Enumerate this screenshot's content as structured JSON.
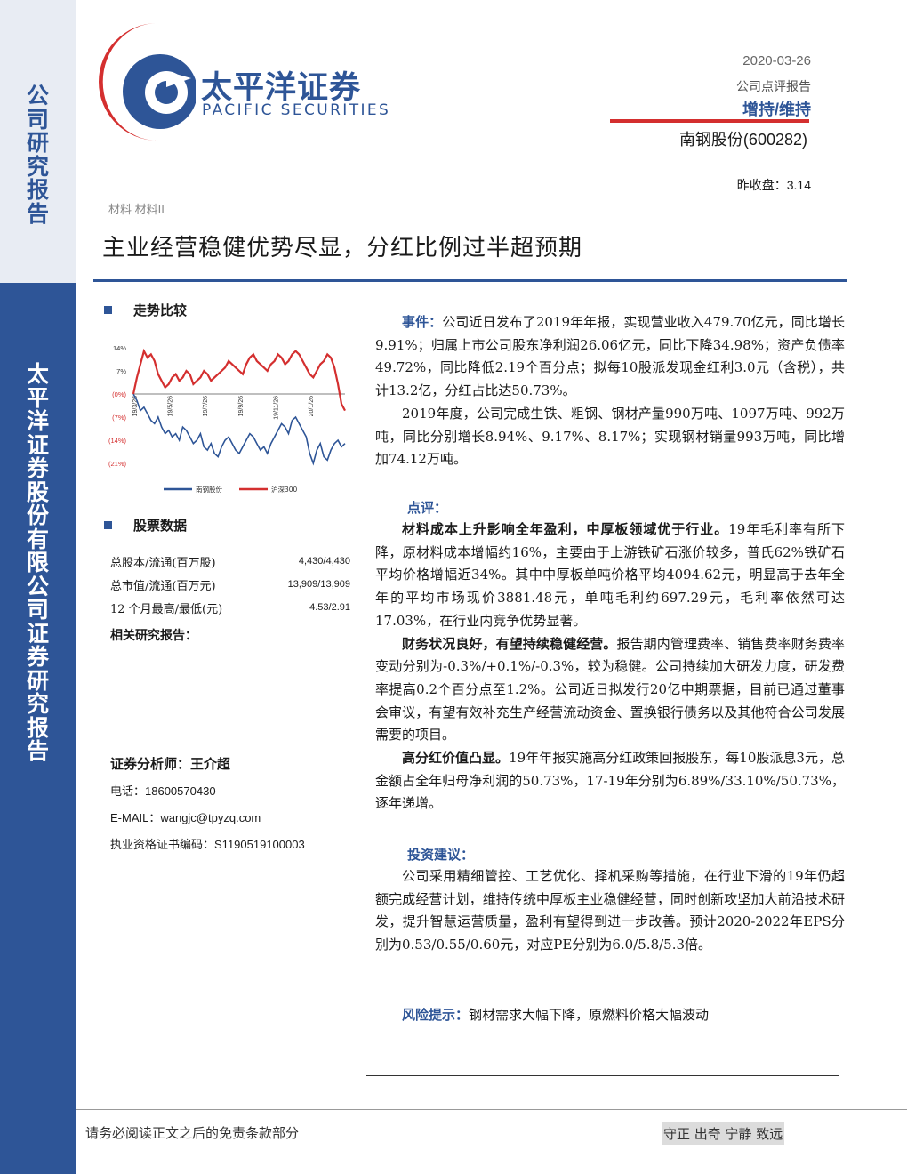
{
  "sidebar": {
    "top_text": [
      "公",
      "司",
      "研",
      "究",
      "报",
      "告"
    ],
    "bottom_text": [
      "太",
      "平",
      "洋",
      "证",
      "券",
      "股",
      "份",
      "有",
      "限",
      "公",
      "司",
      "证",
      "券",
      "研",
      "究",
      "报",
      "告"
    ]
  },
  "logo": {
    "cn": "太平洋证券",
    "en": "PACIFIC SECURITIES"
  },
  "header": {
    "date": "2020-03-26",
    "report_type": "公司点评报告",
    "rating": "增持/维持",
    "stock": "南钢股份(600282)",
    "close": "昨收盘：3.14",
    "industry": "材料 材料II"
  },
  "title": "主业经营稳健优势尽显，分红比例过半超预期",
  "left": {
    "trend_heading": "走势比较",
    "stock_data_heading": "股票数据",
    "stock_rows": [
      {
        "label": "总股本/流通(百万股)",
        "value": "4,430/4,430"
      },
      {
        "label": "总市值/流通(百万元)",
        "value": "13,909/13,909"
      },
      {
        "label": "12 个月最高/最低(元)",
        "value": "4.53/2.91"
      }
    ],
    "related_heading": "相关研究报告：",
    "analyst": "证券分析师：王介超",
    "phone_label": "电话：",
    "phone": "18600570430",
    "email_label": "E-MAIL：",
    "email": "wangjc@tpyzq.com",
    "cert_label": "执业资格证书编码：",
    "cert": "S1190519100003"
  },
  "chart_data": {
    "type": "line",
    "y_tick_labels": [
      "14%",
      "7%",
      "(0%)",
      "(7%)",
      "(14%)",
      "(21%)"
    ],
    "ylim": [
      -21,
      14
    ],
    "x_tick_labels": [
      "19/3/26",
      "19/5/26",
      "19/7/26",
      "19/9/26",
      "19/11/26",
      "20/1/26"
    ],
    "legend_position": "bottom",
    "series": [
      {
        "name": "南钢股份",
        "color": "#2e5597",
        "values": [
          0,
          -2,
          -5,
          -4,
          -6,
          -8,
          -9,
          -7,
          -10,
          -12,
          -11,
          -13,
          -12,
          -14,
          -10,
          -11,
          -13,
          -15,
          -14,
          -12,
          -16,
          -17,
          -15,
          -18,
          -19,
          -16,
          -14,
          -13,
          -15,
          -17,
          -18,
          -16,
          -14,
          -12,
          -13,
          -15,
          -17,
          -16,
          -18,
          -15,
          -13,
          -11,
          -9,
          -10,
          -12,
          -8,
          -7,
          -9,
          -11,
          -13,
          -18,
          -21,
          -17,
          -15,
          -19,
          -20,
          -17,
          -15,
          -14,
          -16,
          -15
        ]
      },
      {
        "name": "沪深300",
        "color": "#d42f2f",
        "values": [
          0,
          5,
          9,
          13,
          11,
          12,
          10,
          6,
          4,
          2,
          3,
          5,
          6,
          4,
          5,
          7,
          6,
          3,
          4,
          5,
          7,
          6,
          4,
          5,
          6,
          7,
          8,
          10,
          9,
          8,
          7,
          6,
          9,
          11,
          12,
          10,
          9,
          8,
          7,
          9,
          10,
          12,
          11,
          9,
          10,
          12,
          13,
          12,
          10,
          8,
          6,
          5,
          7,
          9,
          10,
          12,
          11,
          8,
          3,
          -3,
          -5
        ]
      }
    ]
  },
  "right": {
    "event_label": "事件：",
    "event_text": "公司近日发布了2019年年报，实现营业收入479.70亿元，同比增长9.91%；归属上市公司股东净利润26.06亿元，同比下降34.98%；资产负债率49.72%，同比降低2.19个百分点；拟每10股派发现金红利3.0元（含税），共计13.2亿，分红占比达50.73%。",
    "event_para2": "2019年度，公司完成生铁、粗钢、钢材产量990万吨、1097万吨、992万吨，同比分别增长8.94%、9.17%、8.17%；实现钢材销量993万吨，同比增加74.12万吨。",
    "comment_label": "点评：",
    "c1_bold": "材料成本上升影响全年盈利，中厚板领域优于行业。",
    "c1_text": "19年毛利率有所下降，原材料成本增幅约16%，主要由于上游铁矿石涨价较多，普氏62%铁矿石平均价格增幅近34%。其中中厚板单吨价格平均4094.62元，明显高于去年全年的平均市场现价3881.48元，单吨毛利约697.29元，毛利率依然可达17.03%，在行业内竞争优势显著。",
    "c2_bold": "财务状况良好，有望持续稳健经营。",
    "c2_text": "报告期内管理费率、销售费率财务费率变动分别为-0.3%/+0.1%/-0.3%，较为稳健。公司持续加大研发力度，研发费率提高0.2个百分点至1.2%。公司近日拟发行20亿中期票据，目前已通过董事会审议，有望有效补充生产经营流动资金、置换银行债务以及其他符合公司发展需要的项目。",
    "c3_bold": "高分红价值凸显。",
    "c3_text": "19年年报实施高分红政策回报股东，每10股派息3元，总金额占全年归母净利润的50.73%，17-19年分别为6.89%/33.10%/50.73%，逐年递增。",
    "invest_label": "投资建议：",
    "invest_text": "公司采用精细管控、工艺优化、择机采购等措施，在行业下滑的19年仍超额完成经营计划，维持传统中厚板主业稳健经营，同时创新攻坚加大前沿技术研发，提升智慧运营质量，盈利有望得到进一步改善。预计2020-2022年EPS分别为0.53/0.55/0.60元，对应PE分别为6.0/5.8/5.3倍。",
    "risk_label": "风险提示：",
    "risk_text": "钢材需求大幅下降，原燃料价格大幅波动"
  },
  "footer": {
    "left": "请务必阅读正文之后的免责条款部分",
    "right": "守正 出奇 宁静 致远"
  },
  "colors": {
    "brand_blue": "#2e5597",
    "accent_red": "#d42f2f"
  }
}
